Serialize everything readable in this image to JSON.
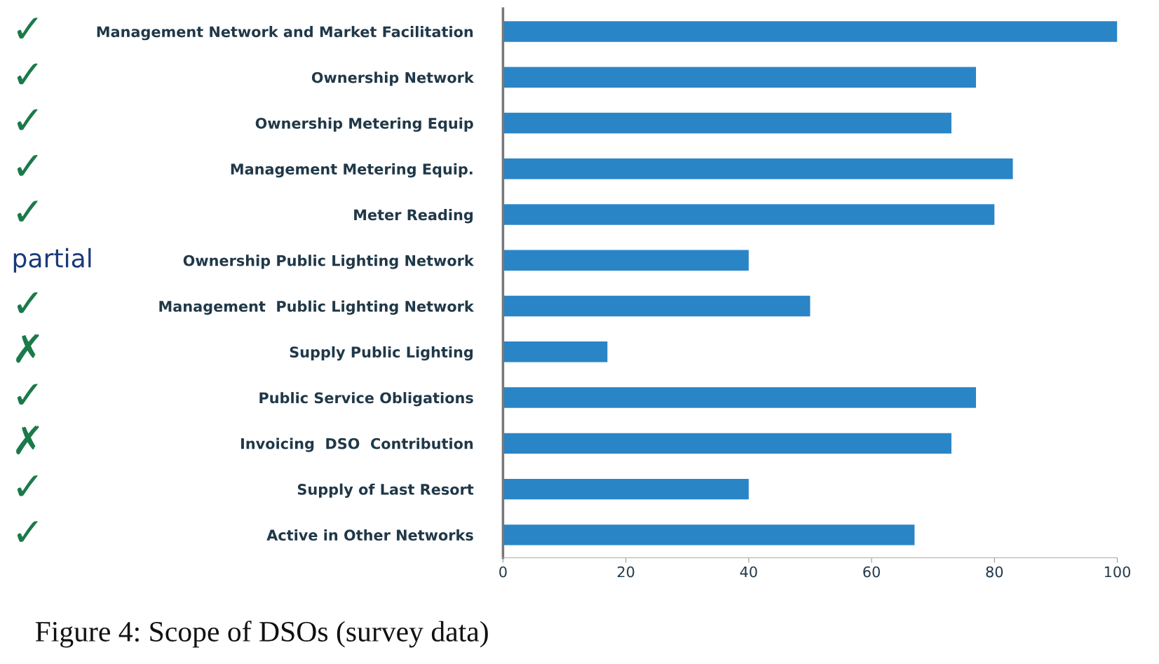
{
  "chart_data": {
    "type": "bar",
    "orientation": "horizontal",
    "title": "Figure 4: Scope of DSOs (survey data)",
    "categories": [
      "Management Network and Market Facilitation",
      "Ownership Network",
      "Ownership Metering Equip",
      "Management Metering Equip.",
      "Meter Reading",
      "Ownership Public Lighting Network",
      "Management  Public Lighting Network",
      "Supply Public Lighting",
      "Public Service Obligations",
      "Invoicing  DSO  Contribution",
      "Supply of Last Resort",
      "Active in Other Networks"
    ],
    "values": [
      100,
      77,
      73,
      83,
      80,
      40,
      50,
      17,
      77,
      73,
      40,
      67
    ],
    "color": "#2a85c7",
    "xlim": [
      0,
      100
    ],
    "xticks": [
      0,
      20,
      40,
      60,
      80,
      100
    ],
    "grid": false,
    "legend": false,
    "annotations": [
      "✓",
      "✓",
      "✓",
      "✓",
      "✓",
      "partial",
      "✓",
      "✗",
      "✓",
      "✗",
      "✓",
      "✓"
    ]
  }
}
